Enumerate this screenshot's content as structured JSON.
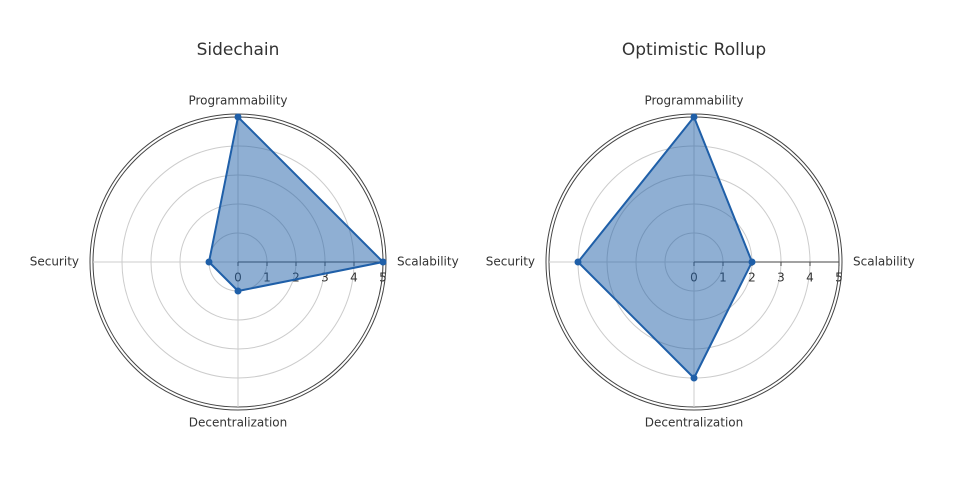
{
  "chart_data": [
    {
      "type": "radar",
      "title": "Sidechain",
      "categories": [
        "Scalability",
        "Programmability",
        "Security",
        "Decentralization"
      ],
      "series": [
        {
          "color": "#1f5fa8",
          "values": [
            5,
            5,
            1,
            1
          ]
        }
      ],
      "rlim": [
        0,
        5
      ],
      "rticks": [
        0,
        1,
        2,
        3,
        4,
        5
      ],
      "grid": true
    },
    {
      "type": "radar",
      "title": "Optimistic Rollup",
      "categories": [
        "Scalability",
        "Programmability",
        "Security",
        "Decentralization"
      ],
      "series": [
        {
          "color": "#1f5fa8",
          "values": [
            2,
            5,
            4,
            4
          ]
        }
      ],
      "rlim": [
        0,
        5
      ],
      "rticks": [
        0,
        1,
        2,
        3,
        4,
        5
      ],
      "grid": true
    }
  ]
}
